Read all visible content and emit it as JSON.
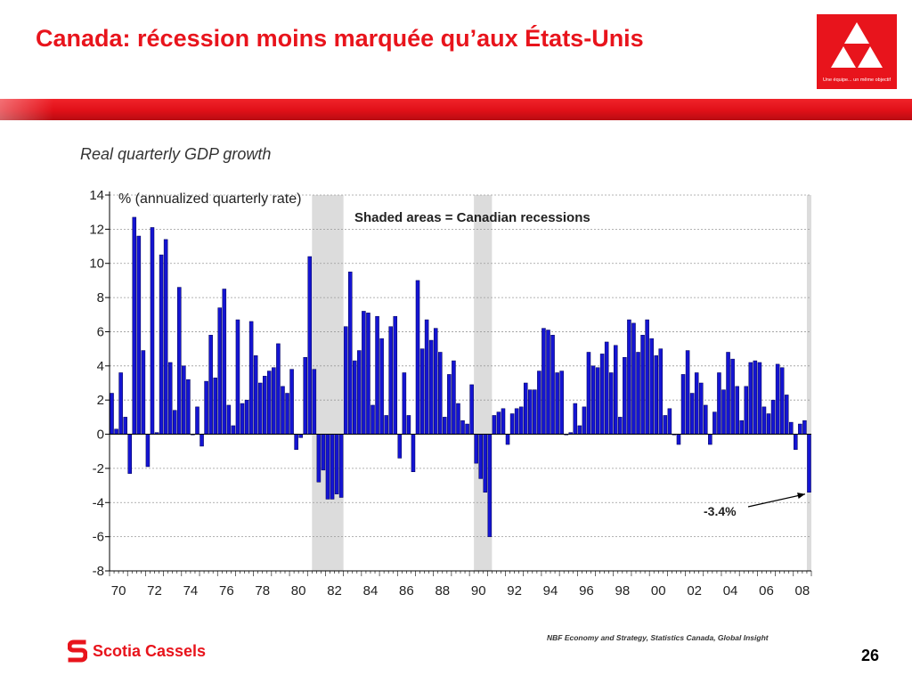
{
  "slide": {
    "title": "Canada: récession moins marquée qu’aux États-Unis",
    "logo_motto": "Une équipe... un même objectif",
    "source": "NBF Economy and Strategy, Statistics Canada, Global Insight",
    "brand": "Scotia Cassels",
    "page_number": "26"
  },
  "colors": {
    "title_red": "#e8141c",
    "bar_blue": "#1414d2",
    "bar_outline": "#000050",
    "recession_shade": "#dcdcdc",
    "grid": "#9a9a9a"
  },
  "chart_data": {
    "type": "bar",
    "title": "Real quarterly GDP growth",
    "ylabel": "% (annualized quarterly rate)",
    "annotation": "Shaded areas = Canadian recessions",
    "callout": "-3.4%",
    "ylim": [
      -8,
      14
    ],
    "yticks": [
      14,
      12,
      10,
      8,
      6,
      4,
      2,
      0,
      -2,
      -4,
      -6,
      -8
    ],
    "xtick_labels": [
      "70",
      "72",
      "74",
      "76",
      "78",
      "80",
      "82",
      "84",
      "86",
      "88",
      "90",
      "92",
      "94",
      "96",
      "98",
      "00",
      "02",
      "04",
      "06",
      "08"
    ],
    "grid": true,
    "start_year": 1970,
    "recessions": [
      {
        "start": "1981Q2",
        "end": "1982Q4"
      },
      {
        "start": "1990Q2",
        "end": "1991Q1"
      },
      {
        "start": "2008Q4",
        "end": "2008Q4"
      }
    ],
    "series": [
      {
        "values": [
          2.4,
          0.3,
          3.6,
          1.0,
          -2.3,
          12.7,
          11.6,
          4.9,
          -1.9,
          12.1,
          0.1,
          10.5,
          11.4,
          4.2,
          1.4,
          8.6,
          4.0,
          3.2,
          0.0,
          1.6,
          -0.7,
          3.1,
          5.8,
          3.3,
          7.4,
          8.5,
          1.7,
          0.5,
          6.7,
          1.8,
          2.0,
          6.6,
          4.6,
          3.0,
          3.4,
          3.7,
          3.9,
          5.3,
          2.8,
          2.4,
          3.8,
          -0.9,
          -0.2,
          4.5,
          10.4,
          3.8,
          -2.8,
          -2.1,
          -3.8,
          -3.8,
          -3.5,
          -3.7,
          6.3,
          9.5,
          4.3,
          4.9,
          7.2,
          7.1,
          1.7,
          6.9,
          5.6,
          1.1,
          6.3,
          6.9,
          -1.4,
          3.6,
          1.1,
          -2.2,
          9.0,
          5.0,
          6.7,
          5.5,
          6.2,
          4.8,
          1.0,
          3.5,
          4.3,
          1.8,
          0.8,
          0.6,
          2.9,
          -1.7,
          -2.6,
          -3.4,
          -6.0,
          1.1,
          1.3,
          1.5,
          -0.6,
          1.2,
          1.5,
          1.6,
          3.0,
          2.6,
          2.6,
          3.7,
          6.2,
          6.1,
          5.8,
          3.6,
          3.7,
          0.0,
          0.1,
          1.8,
          0.5,
          1.6,
          4.8,
          4.0,
          3.9,
          4.7,
          5.4,
          3.6,
          5.2,
          1.0,
          4.5,
          6.7,
          6.5,
          4.8,
          5.8,
          6.7,
          5.6,
          4.6,
          5.0,
          1.1,
          1.5,
          0.0,
          -0.6,
          3.5,
          4.9,
          2.4,
          3.6,
          3.0,
          1.7,
          -0.6,
          1.3,
          3.6,
          2.6,
          4.8,
          4.4,
          2.8,
          0.8,
          2.8,
          4.2,
          4.3,
          4.2,
          1.6,
          1.2,
          2.0,
          4.1,
          3.9,
          2.3,
          0.7,
          -0.9,
          0.6,
          0.8,
          -3.4
        ]
      }
    ]
  }
}
